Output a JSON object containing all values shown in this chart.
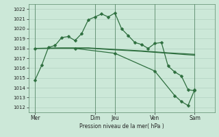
{
  "background_color": "#cce8d8",
  "grid_color": "#aaccbb",
  "line_color": "#2d6e3e",
  "xlabel": "Pression niveau de la mer( hPa )",
  "ylim": [
    1011.5,
    1022.5
  ],
  "yticks": [
    1012,
    1013,
    1014,
    1015,
    1016,
    1017,
    1018,
    1019,
    1020,
    1021,
    1022
  ],
  "xlim": [
    0,
    28
  ],
  "day_labels": [
    "Mer",
    "Dim",
    "Jeu",
    "Ven",
    "Sam"
  ],
  "day_positions": [
    1,
    10,
    13,
    19,
    25
  ],
  "line1_x": [
    1,
    2,
    3,
    4,
    5,
    6,
    7,
    8,
    9,
    10,
    11,
    12,
    13,
    14,
    15,
    16,
    17,
    18,
    19,
    20,
    21,
    22,
    23,
    24,
    25
  ],
  "line1_y": [
    1014.8,
    1016.3,
    1018.1,
    1018.3,
    1019.1,
    1019.2,
    1018.8,
    1019.5,
    1020.9,
    1021.2,
    1021.5,
    1021.2,
    1021.6,
    1020.0,
    1019.3,
    1018.6,
    1018.4,
    1018.0,
    1018.5,
    1018.6,
    1016.2,
    1015.6,
    1015.2,
    1013.8,
    1013.7
  ],
  "line2_x": [
    1,
    5,
    9,
    13,
    17,
    21,
    25
  ],
  "line2_y": [
    1018.0,
    1018.05,
    1018.05,
    1017.9,
    1017.75,
    1017.55,
    1017.4
  ],
  "line3_x": [
    1,
    5,
    9,
    13,
    17,
    21,
    25
  ],
  "line3_y": [
    1018.0,
    1018.02,
    1018.02,
    1017.85,
    1017.7,
    1017.5,
    1017.3
  ],
  "line4_x": [
    1,
    7,
    13,
    19,
    22,
    23,
    24,
    25
  ],
  "line4_y": [
    1018.0,
    1018.0,
    1017.5,
    1015.7,
    1013.2,
    1012.6,
    1012.2,
    1013.8
  ],
  "marker_size": 2.5,
  "line_width": 0.9
}
